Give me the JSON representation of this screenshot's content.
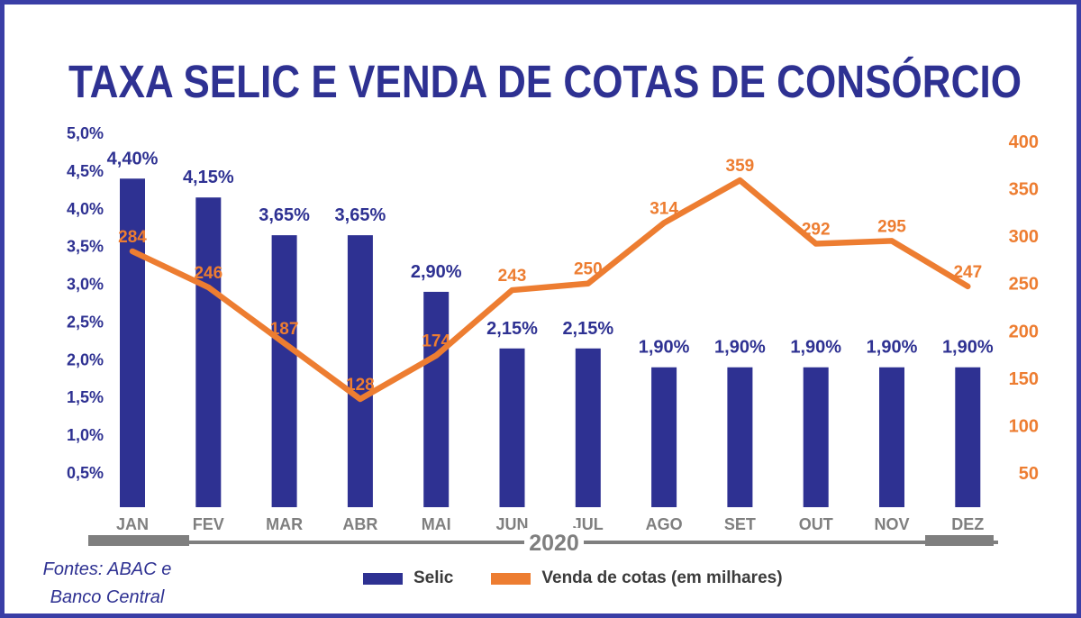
{
  "title": "TAXA SELIC E VENDA DE COTAS DE CONSÓRCIO",
  "source_note": {
    "line1": "Fontes: ABAC e",
    "line2": "Banco Central"
  },
  "legend": {
    "items": [
      {
        "label": "Selic",
        "color": "#2E3192"
      },
      {
        "label": "Venda de cotas (em milhares)",
        "color": "#ED7D31"
      }
    ]
  },
  "colors": {
    "navy": "#2E3192",
    "orange": "#ED7D31",
    "axis_gray": "#7F7F7F",
    "legend_text": "#3B3B3B",
    "frame_border": "#3A3EA6",
    "background": "#FFFFFF"
  },
  "chart_data": {
    "type": "bar+line",
    "title": "TAXA SELIC E VENDA DE COTAS DE CONSÓRCIO",
    "categories": [
      "JAN",
      "FEV",
      "MAR",
      "ABR",
      "MAI",
      "JUN",
      "JUL",
      "AGO",
      "SET",
      "OUT",
      "NOV",
      "DEZ"
    ],
    "x_axis": {
      "group_label": "2020"
    },
    "series": [
      {
        "name": "Selic",
        "type": "bar",
        "axis": "left",
        "unit": "%",
        "color": "#2E3192",
        "values": [
          4.4,
          4.15,
          3.65,
          3.65,
          2.9,
          2.15,
          2.15,
          1.9,
          1.9,
          1.9,
          1.9,
          1.9
        ],
        "labels": [
          "4,40%",
          "4,15%",
          "3,65%",
          "3,65%",
          "2,90%",
          "2,15%",
          "2,15%",
          "1,90%",
          "1,90%",
          "1,90%",
          "1,90%",
          "1,90%"
        ]
      },
      {
        "name": "Venda de cotas (em milhares)",
        "type": "line",
        "axis": "right",
        "unit": "milhares",
        "color": "#ED7D31",
        "values": [
          284,
          246,
          187,
          128,
          174,
          243,
          250,
          314,
          359,
          292,
          295,
          247
        ],
        "labels": [
          "284",
          "246",
          "187",
          "128",
          "174",
          "243",
          "250",
          "314",
          "359",
          "292",
          "295",
          "247"
        ]
      }
    ],
    "left_axis": {
      "color": "#2E3192",
      "min": 0,
      "max": 5,
      "tick_values": [
        5.0,
        4.5,
        4.0,
        3.5,
        3.0,
        2.5,
        2.0,
        1.5,
        1.0,
        0.5
      ],
      "tick_labels": [
        "5,0%",
        "4,5%",
        "4,0%",
        "3,5%",
        "3,0%",
        "2,5%",
        "2,0%",
        "1,5%",
        "1,0%",
        "0,5%"
      ]
    },
    "right_axis": {
      "color": "#ED7D31",
      "min": 0,
      "max": 400,
      "tick_values": [
        400,
        350,
        300,
        250,
        200,
        150,
        100,
        50
      ],
      "tick_labels": [
        "400",
        "350",
        "300",
        "250",
        "200",
        "150",
        "100",
        "50"
      ]
    },
    "grid": false,
    "legend_position": "bottom"
  }
}
